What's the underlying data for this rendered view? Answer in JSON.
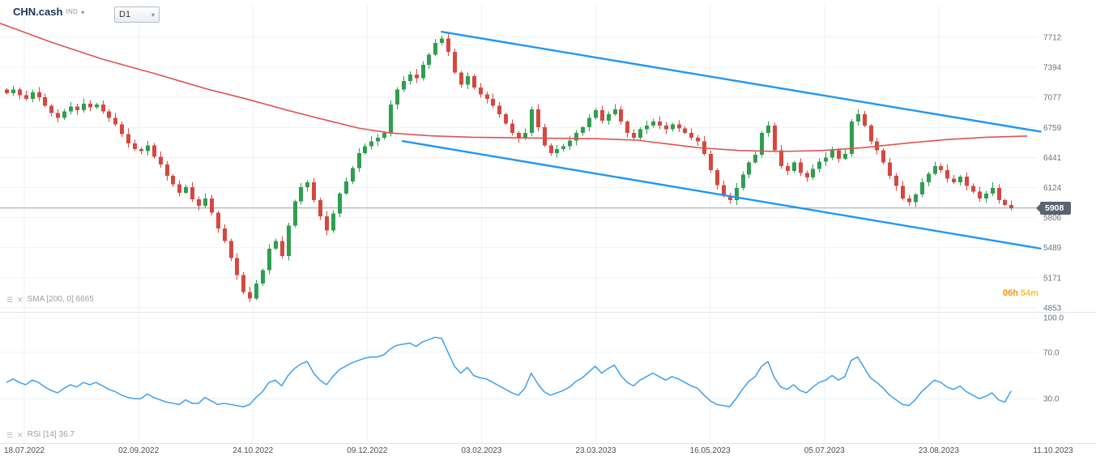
{
  "header": {
    "symbol": "CHN.cash",
    "symbol_type": "IND",
    "timeframe": "D1"
  },
  "price_pane": {
    "sma_label": "SMA [200, 0]  6665",
    "current_price": "5908",
    "countdown": {
      "hours": "06h",
      "minutes": "54m"
    },
    "axis_labels": [
      7712,
      7394,
      7077,
      6759,
      6441,
      6124,
      5806,
      5489,
      5171,
      4853
    ]
  },
  "rsi_pane": {
    "rsi_label": "RSI [14]  36.7",
    "axis_labels": [
      "100.0",
      "70.0",
      "30.0"
    ],
    "axis_values": [
      100,
      70,
      30
    ]
  },
  "x_axis": {
    "dates": [
      "18.07.2022",
      "02.09.2022",
      "24.10.2022",
      "09.12.2022",
      "03.02.2023",
      "23.03.2023",
      "16.05.2023",
      "05.07.2023",
      "23.08.2023",
      "11.10.2023"
    ]
  },
  "colors": {
    "up": "#2f9e4f",
    "down": "#d6483f",
    "sma": "#e05252",
    "trend": "#2196f3",
    "rsi_line": "#3da0f0",
    "badge_bg": "#5c6370",
    "countdown_h": "#f0930f",
    "countdown_m": "#f6c23d",
    "axis_text": "#6a7380",
    "date_text": "#4a4f55",
    "grid": "#eef1f4",
    "price_line": "#9aa0a6",
    "pane_border": "#e0e4e8",
    "symbol_text": "#1b3358"
  },
  "chart_data": [
    {
      "type": "candlestick",
      "title": "CHN.cash D1",
      "ylabel": "price",
      "ylim": [
        4853,
        7900
      ],
      "x_tick_labels": [
        "18.07.2022",
        "02.09.2022",
        "24.10.2022",
        "09.12.2022",
        "03.02.2023",
        "23.03.2023",
        "16.05.2023",
        "05.07.2023",
        "23.08.2023",
        "11.10.2023"
      ],
      "y_axis_ticks": [
        7712,
        7394,
        7077,
        6759,
        6441,
        6124,
        5806,
        5489,
        5171,
        4853
      ],
      "last_price": 5908,
      "closes": [
        7120,
        7160,
        7100,
        7060,
        7130,
        7080,
        6990,
        6910,
        6860,
        6930,
        6980,
        6940,
        7010,
        6970,
        7000,
        6930,
        6860,
        6790,
        6690,
        6590,
        6530,
        6510,
        6570,
        6450,
        6370,
        6250,
        6160,
        6070,
        6130,
        6000,
        5930,
        6010,
        5860,
        5690,
        5560,
        5380,
        5200,
        5020,
        4950,
        5110,
        5250,
        5480,
        5560,
        5400,
        5720,
        5980,
        6130,
        6180,
        5990,
        5820,
        5670,
        5850,
        6060,
        6190,
        6330,
        6490,
        6560,
        6610,
        6650,
        6700,
        7000,
        7160,
        7250,
        7320,
        7280,
        7420,
        7530,
        7650,
        7700,
        7560,
        7340,
        7210,
        7300,
        7180,
        7110,
        7060,
        6990,
        6900,
        6800,
        6700,
        6640,
        6700,
        6950,
        6760,
        6570,
        6490,
        6530,
        6560,
        6620,
        6700,
        6760,
        6860,
        6940,
        6830,
        6900,
        6950,
        6820,
        6700,
        6650,
        6740,
        6780,
        6820,
        6780,
        6740,
        6790,
        6750,
        6700,
        6650,
        6610,
        6480,
        6310,
        6150,
        6040,
        5990,
        6120,
        6260,
        6390,
        6470,
        6700,
        6780,
        6520,
        6350,
        6300,
        6390,
        6280,
        6230,
        6320,
        6400,
        6440,
        6520,
        6430,
        6480,
        6820,
        6900,
        6780,
        6610,
        6520,
        6390,
        6250,
        6140,
        6010,
        5970,
        6050,
        6180,
        6270,
        6350,
        6310,
        6220,
        6180,
        6240,
        6140,
        6080,
        6010,
        6060,
        6120,
        5990,
        5940,
        5908
      ],
      "indicators": [
        {
          "name": "SMA",
          "params": "[200, 0]",
          "value": 6665,
          "anchors_f_price": [
            [
              0,
              7860
            ],
            [
              0.05,
              7660
            ],
            [
              0.1,
              7480
            ],
            [
              0.15,
              7330
            ],
            [
              0.2,
              7170
            ],
            [
              0.24,
              7060
            ],
            [
              0.28,
              6940
            ],
            [
              0.32,
              6830
            ],
            [
              0.35,
              6750
            ],
            [
              0.38,
              6700
            ],
            [
              0.42,
              6670
            ],
            [
              0.46,
              6655
            ],
            [
              0.5,
              6650
            ],
            [
              0.54,
              6645
            ],
            [
              0.58,
              6640
            ],
            [
              0.62,
              6625
            ],
            [
              0.65,
              6585
            ],
            [
              0.68,
              6545
            ],
            [
              0.72,
              6515
            ],
            [
              0.76,
              6505
            ],
            [
              0.8,
              6515
            ],
            [
              0.84,
              6545
            ],
            [
              0.88,
              6590
            ],
            [
              0.92,
              6630
            ],
            [
              0.96,
              6655
            ],
            [
              1.0,
              6668
            ]
          ]
        }
      ],
      "drawings": [
        {
          "name": "upper-channel-trendline",
          "x1f": 0.43,
          "p1": 7770,
          "x2f": 1.013,
          "p2": 6715
        },
        {
          "name": "lower-channel-trendline",
          "x1f": 0.392,
          "p1": 6615,
          "x2f": 1.013,
          "p2": 5480
        }
      ]
    },
    {
      "type": "line",
      "name": "RSI",
      "params": "[14]",
      "last_value": 36.7,
      "ylim": [
        0,
        100
      ],
      "y_axis_ticks": [
        "100.0",
        "70.0",
        "30.0"
      ],
      "y_tick_values": [
        100,
        70,
        30
      ],
      "values": [
        44,
        47,
        44,
        42,
        46,
        44,
        40,
        37,
        35,
        39,
        42,
        40,
        44,
        42,
        44,
        41,
        38,
        36,
        33,
        31,
        30,
        30,
        34,
        31,
        29,
        27,
        26,
        25,
        29,
        26,
        26,
        31,
        28,
        25,
        26,
        25,
        24,
        23,
        25,
        31,
        36,
        44,
        46,
        41,
        50,
        56,
        60,
        62,
        52,
        46,
        42,
        49,
        55,
        58,
        61,
        63,
        65,
        66,
        66,
        68,
        73,
        76,
        77,
        78,
        75,
        79,
        81,
        83,
        82,
        70,
        58,
        52,
        57,
        50,
        48,
        47,
        44,
        41,
        38,
        35,
        33,
        39,
        52,
        43,
        36,
        33,
        35,
        37,
        40,
        45,
        48,
        53,
        58,
        52,
        56,
        59,
        50,
        44,
        41,
        46,
        49,
        52,
        49,
        46,
        49,
        47,
        44,
        41,
        39,
        33,
        28,
        25,
        24,
        23,
        30,
        38,
        45,
        49,
        58,
        62,
        48,
        40,
        38,
        42,
        37,
        35,
        40,
        44,
        46,
        50,
        46,
        49,
        63,
        66,
        57,
        48,
        44,
        39,
        33,
        29,
        25,
        24,
        29,
        36,
        41,
        46,
        44,
        40,
        38,
        41,
        36,
        33,
        30,
        32,
        35,
        29,
        27,
        36.7
      ]
    }
  ]
}
